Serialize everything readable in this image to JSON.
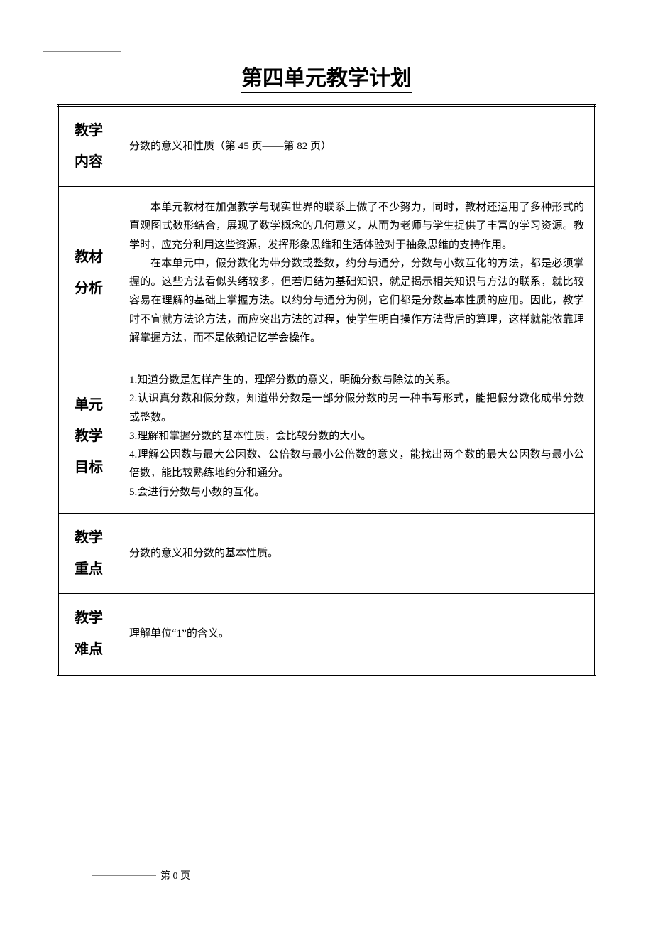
{
  "title": "第四单元教学计划",
  "rows": {
    "content_label": "教学\n内容",
    "content_text": "分数的意义和性质（第 45 页——第 82 页）",
    "analysis_label": "教材\n分析",
    "analysis_p1": "本单元教材在加强教学与现实世界的联系上做了不少努力，同时，教材还运用了多种形式的直观图式数形结合，展现了数学概念的几何意义，从而为老师与学生提供了丰富的学习资源。教学时，应充分利用这些资源，发挥形象思维和生活体验对于抽象思维的支持作用。",
    "analysis_p2": "在本单元中，假分数化为带分数或整数，约分与通分，分数与小数互化的方法，都是必须掌握的。这些方法看似头绪较多，但若归结为基础知识，就是揭示相关知识与方法的联系，就比较容易在理解的基础上掌握方法。以约分与通分为例，它们都是分数基本性质的应用。因此，教学时不宜就方法论方法，而应突出方法的过程，使学生明白操作方法背后的算理，这样就能依靠理解掌握方法，而不是依赖记忆学会操作。",
    "goals_label": "单元\n教学\n目标",
    "goal1": "1.知道分数是怎样产生的，理解分数的意义，明确分数与除法的关系。",
    "goal2": "2.认识真分数和假分数，知道带分数是一部分假分数的另一种书写形式，能把假分数化成带分数或整数。",
    "goal3": "3.理解和掌握分数的基本性质，会比较分数的大小。",
    "goal4": "4.理解公因数与最大公因数、公倍数与最小公倍数的意义，能找出两个数的最大公因数与最小公倍数，能比较熟练地约分和通分。",
    "goal5": "5.会进行分数与小数的互化。",
    "key_label": "教学\n重点",
    "key_text": "分数的意义和分数的基本性质。",
    "diff_label": "教学\n难点",
    "diff_text": "理解单位“1”的含义。"
  },
  "footer": "第 0 页"
}
